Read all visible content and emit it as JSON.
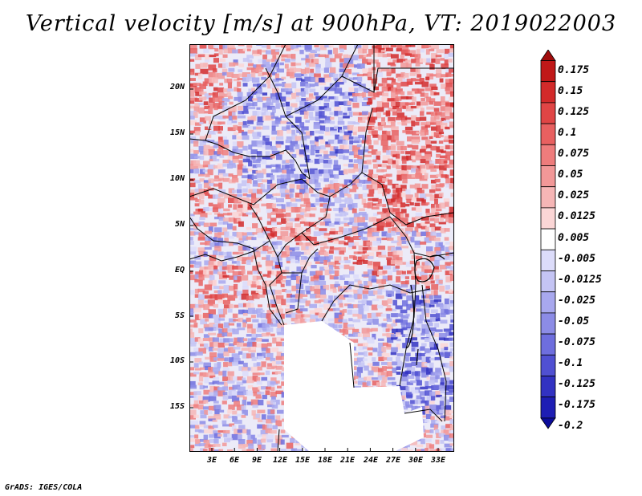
{
  "title": "Vertical velocity [m/s] at 900hPa, VT: 2019022003",
  "credit": "GrADS: IGES/COLA",
  "lat_labels": [
    "20N",
    "15N",
    "10N",
    "5N",
    "EQ",
    "5S",
    "10S",
    "15S"
  ],
  "lon_labels": [
    "3E",
    "6E",
    "9E",
    "12E",
    "15E",
    "18E",
    "21E",
    "24E",
    "27E",
    "30E",
    "33E"
  ],
  "colorbar": {
    "levels": [
      "0.175",
      "0.15",
      "0.125",
      "0.1",
      "0.075",
      "0.05",
      "0.025",
      "0.0125",
      "0.005",
      "-0.005",
      "-0.0125",
      "-0.025",
      "-0.05",
      "-0.075",
      "-0.1",
      "-0.125",
      "-0.175",
      "-0.2"
    ],
    "colors": [
      "#a00c0c",
      "#c01818",
      "#d22a2a",
      "#e04545",
      "#e86060",
      "#ee7c7c",
      "#f29898",
      "#f6b6b6",
      "#fbd6d6",
      "#ffffff",
      "#dcdcfa",
      "#c4c4f4",
      "#a8a8ee",
      "#8c8ce6",
      "#6e6ede",
      "#5050d2",
      "#3232c2",
      "#1e1eb4",
      "#0c0c9a"
    ],
    "top_arrow_color": "#a00c0c",
    "bottom_arrow_color": "#0c0c9a"
  }
}
